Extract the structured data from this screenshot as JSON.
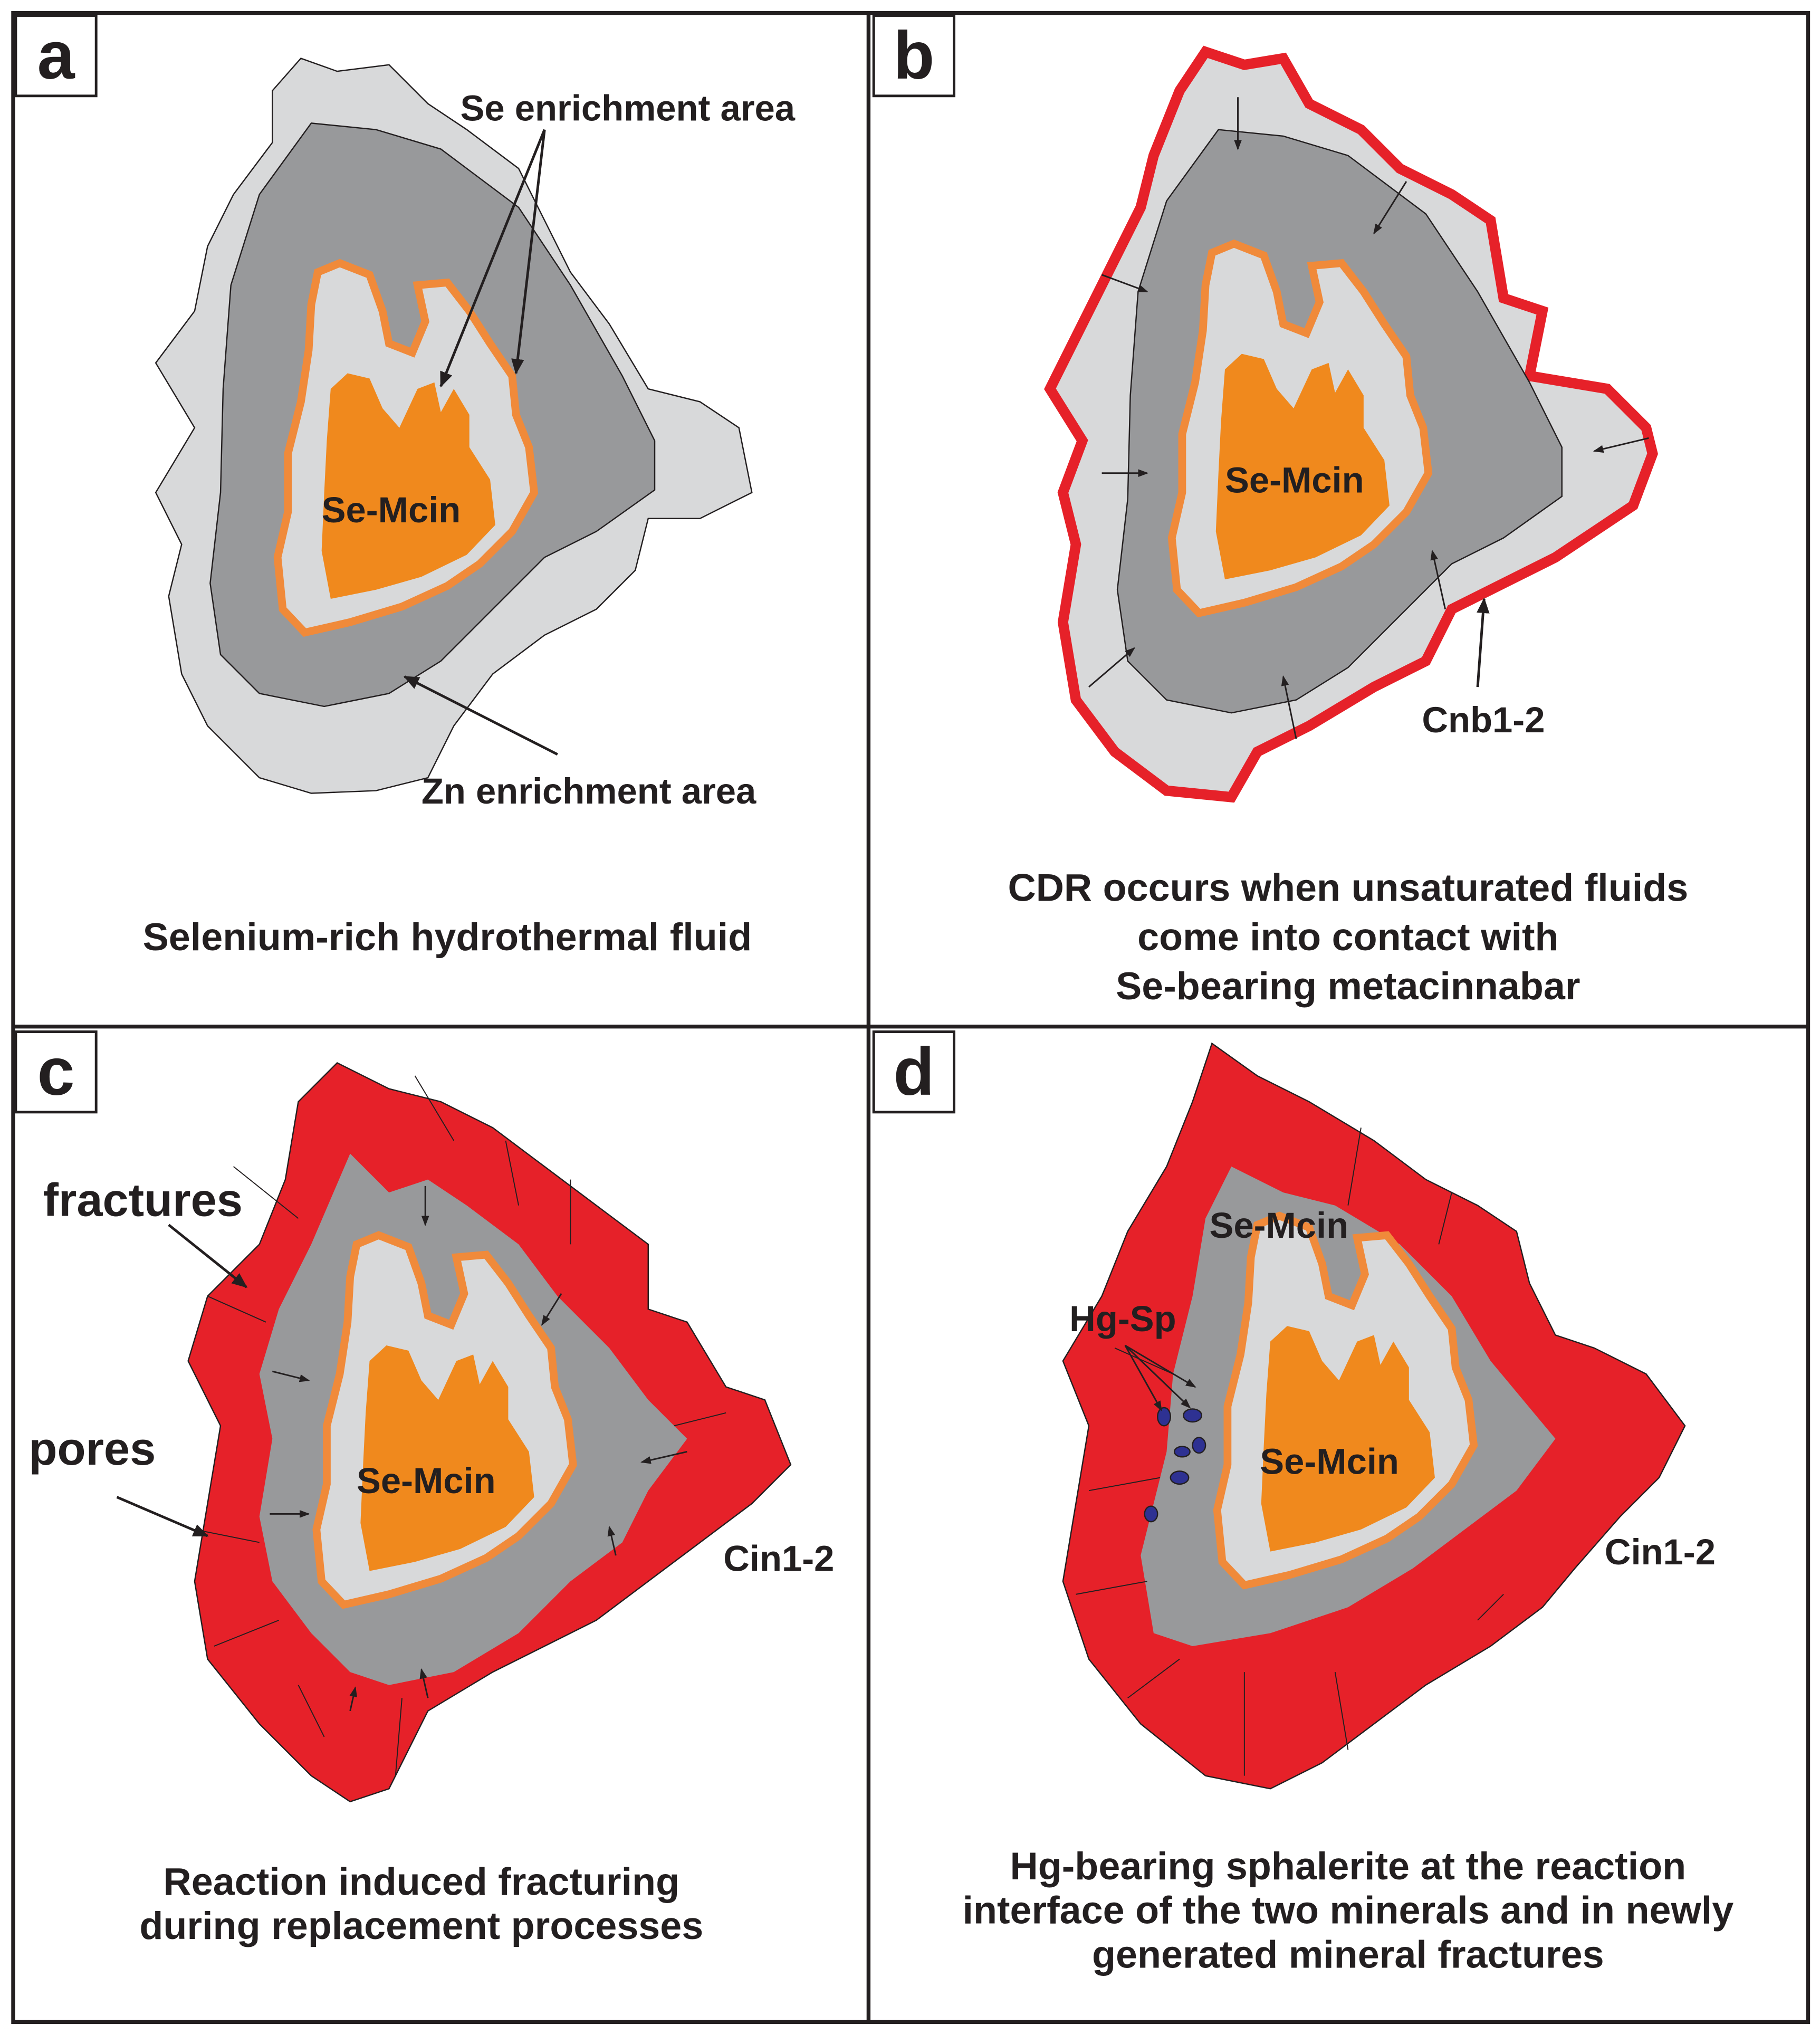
{
  "panels": [
    {
      "label": "a",
      "annotations": [
        "Se enrichment area",
        "Se-Mcin",
        "Zn enrichment area"
      ],
      "caption": [
        "Selenium-rich hydrothermal fluid"
      ]
    },
    {
      "label": "b",
      "annotations": [
        "Se-Mcin",
        "Cnb1-2"
      ],
      "caption": [
        "CDR occurs when unsaturated fluids",
        "come into contact with",
        "Se-bearing metacinnabar"
      ]
    },
    {
      "label": "c",
      "annotations": [
        "fractures",
        "pores",
        "Se-Mcin",
        "Cin1-2"
      ],
      "caption": [
        "Reaction induced fracturing",
        "during replacement processes"
      ]
    },
    {
      "label": "d",
      "annotations": [
        "Se-Mcin",
        "Hg-Sp",
        "Se-Mcin",
        "Cin1-2"
      ],
      "caption": [
        "Hg-bearing sphalerite at the reaction",
        "interface of the two minerals and in newly",
        "generated mineral fractures"
      ]
    }
  ]
}
